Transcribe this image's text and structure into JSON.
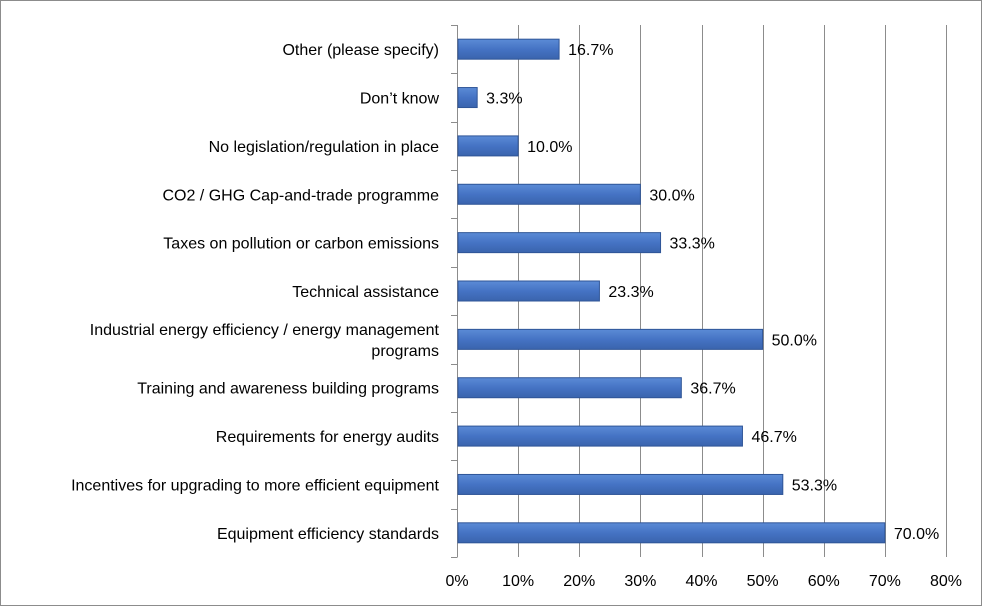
{
  "chart_data": {
    "type": "bar",
    "orientation": "horizontal",
    "categories": [
      "Other (please specify)",
      "Don’t know",
      "No legislation/regulation in place",
      "CO2 / GHG Cap-and-trade programme",
      "Taxes on pollution or carbon emissions",
      "Technical assistance",
      "Industrial energy efficiency / energy management programs",
      "Training and awareness building programs",
      "Requirements for energy audits",
      "Incentives for upgrading to more efficient equipment",
      "Equipment efficiency standards"
    ],
    "category_lines": [
      [
        "Other (please specify)"
      ],
      [
        "Don’t know"
      ],
      [
        "No legislation/regulation in place"
      ],
      [
        "CO2 / GHG Cap-and-trade programme"
      ],
      [
        "Taxes on pollution or carbon emissions"
      ],
      [
        "Technical assistance"
      ],
      [
        "Industrial energy efficiency / energy management",
        "programs"
      ],
      [
        "Training and awareness building programs"
      ],
      [
        "Requirements for energy audits"
      ],
      [
        "Incentives for upgrading to more efficient equipment"
      ],
      [
        "Equipment efficiency standards"
      ]
    ],
    "values": [
      16.7,
      3.3,
      10.0,
      30.0,
      33.3,
      23.3,
      50.0,
      36.7,
      46.7,
      53.3,
      70.0
    ],
    "data_labels": [
      "16.7%",
      "3.3%",
      "10.0%",
      "30.0%",
      "33.3%",
      "23.3%",
      "50.0%",
      "36.7%",
      "46.7%",
      "53.3%",
      "70.0%"
    ],
    "x_ticks": [
      0,
      10,
      20,
      30,
      40,
      50,
      60,
      70,
      80
    ],
    "x_tick_labels": [
      "0%",
      "10%",
      "20%",
      "30%",
      "40%",
      "50%",
      "60%",
      "70%",
      "80%"
    ],
    "xlim": [
      0,
      80
    ],
    "grid": true,
    "legend": "none",
    "title": "",
    "xlabel": "",
    "ylabel": "",
    "colors": {
      "bar_fill": "#4573c4",
      "bar_edge": "#2f5597",
      "gridline": "#8c8c8c",
      "axis": "#8c8c8c"
    }
  }
}
